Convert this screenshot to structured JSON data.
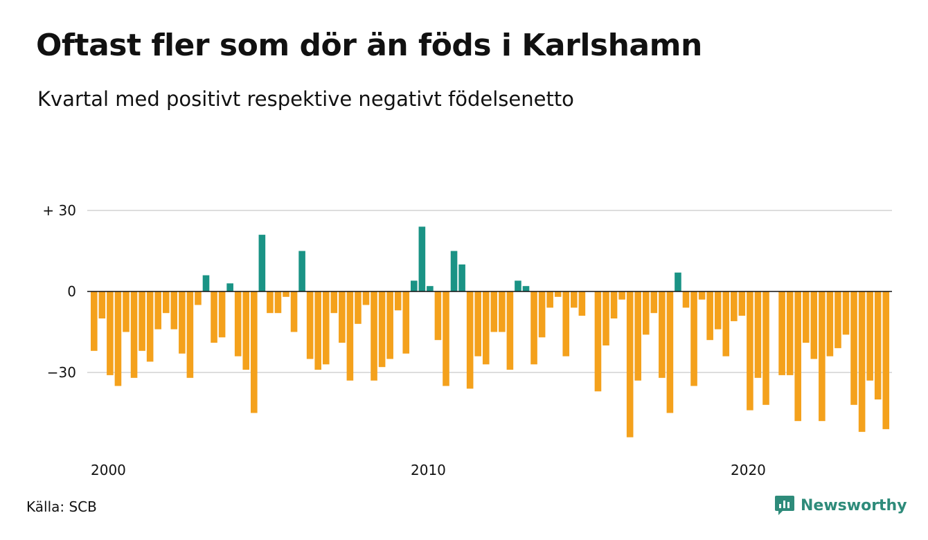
{
  "title": "Oftast fler som dör än föds i Karlshamn",
  "subtitle": "Kvartal med positivt respektive negativt födelsenetto",
  "source": "Källa: SCB",
  "brand": "Newsworthy",
  "colors": {
    "positive": "#1a9385",
    "negative": "#f4a11c",
    "grid": "#dddddd",
    "baseline": "#111111",
    "brand": "#2e8b7a"
  },
  "chart_data": {
    "type": "bar",
    "title": "Oftast fler som dör än föds i Karlshamn",
    "subtitle": "Kvartal med positivt respektive negativt födelsenetto",
    "xlabel": "",
    "ylabel": "",
    "ylim": [
      -56,
      35
    ],
    "y_ticks": [
      {
        "value": 30,
        "label": "+ 30"
      },
      {
        "value": 0,
        "label": "0"
      },
      {
        "value": -30,
        "label": "−30"
      }
    ],
    "x_ticks": [
      {
        "value": 2000,
        "label": "2000"
      },
      {
        "value": 2010,
        "label": "2010"
      },
      {
        "value": 2020,
        "label": "2020"
      }
    ],
    "start_year": 2000,
    "start_quarter": 1,
    "grid": true,
    "legend": "none",
    "values": [
      -22,
      -10,
      -31,
      -35,
      -15,
      -32,
      -22,
      -26,
      -14,
      -8,
      -14,
      -23,
      -32,
      -5,
      6,
      -19,
      -17,
      3,
      -24,
      -29,
      -45,
      21,
      -8,
      -8,
      -2,
      -15,
      15,
      -25,
      -29,
      -27,
      -8,
      -19,
      -33,
      -12,
      -5,
      -33,
      -28,
      -25,
      -7,
      -23,
      4,
      24,
      2,
      -18,
      -35,
      15,
      10,
      -36,
      -24,
      -27,
      -15,
      -15,
      -29,
      4,
      2,
      -27,
      -17,
      -6,
      -2,
      -24,
      -6,
      -9,
      0,
      -37,
      -20,
      -10,
      -3,
      -54,
      -33,
      -16,
      -8,
      -32,
      -45,
      7,
      -6,
      -35,
      -3,
      -18,
      -14,
      -24,
      -11,
      -9,
      -44,
      -32,
      -42,
      0,
      -31,
      -31,
      -48,
      -19,
      -25,
      -48,
      -24,
      -21,
      -16,
      -42,
      -52,
      -33,
      -40,
      -51
    ]
  }
}
